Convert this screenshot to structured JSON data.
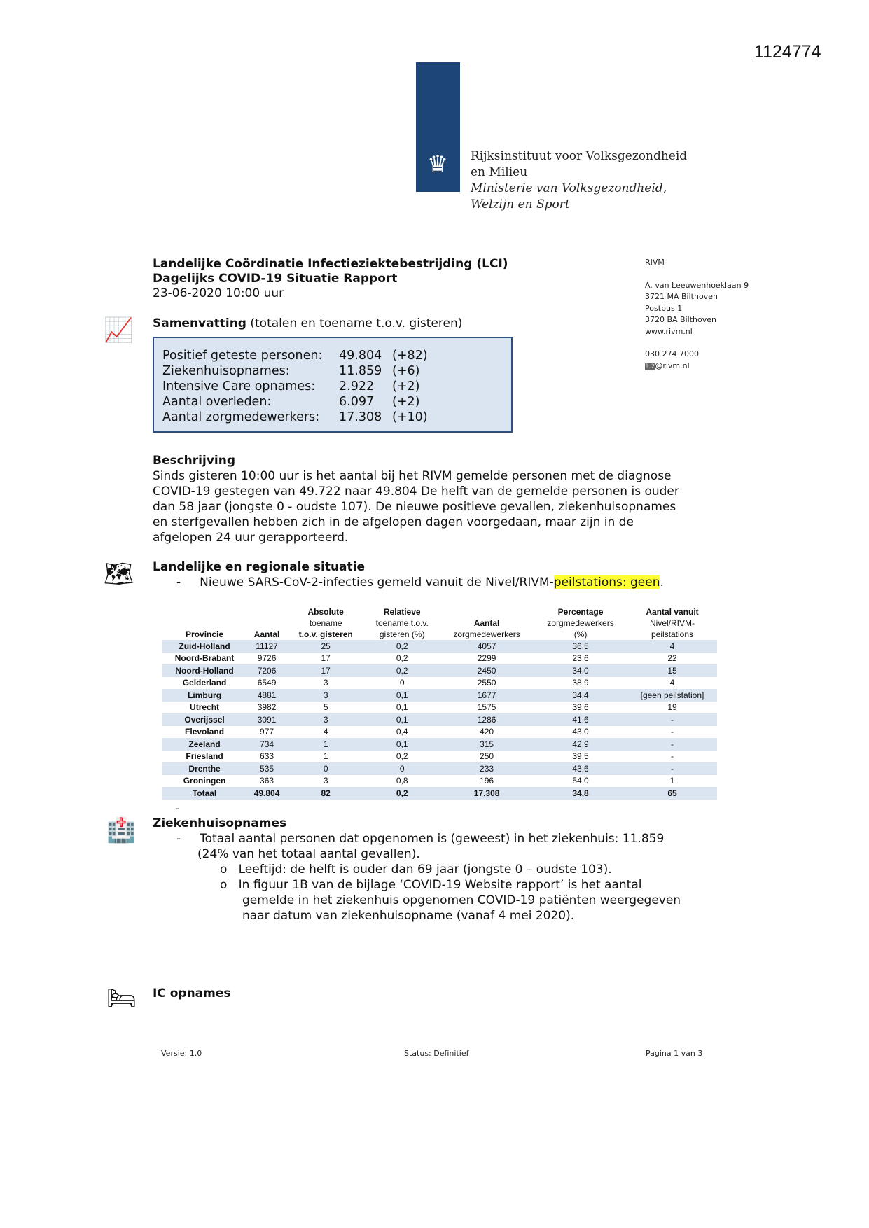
{
  "doc_id": "1124774",
  "logo": {
    "org": "Rijksinstituut voor Volksgezondheid",
    "org2": "en Milieu",
    "ministry": "Ministerie van Volksgezondheid,",
    "ministry2": "Welzijn en Sport",
    "icon": "royal-crest-icon",
    "color": "#1d4677"
  },
  "header": {
    "line1": "Landelijke Coördinatie Infectieziektebestrijding (LCI)",
    "line2": "Dagelijks COVID-19 Situatie Rapport",
    "date": "23-06-2020 10:00 uur"
  },
  "address": {
    "name": "RIVM",
    "street": "A. van Leeuwenhoeklaan 9",
    "city": "3721 MA Bilthoven",
    "postbus": "Postbus 1",
    "postcity": "3720 BA Bilthoven",
    "web": "www.rivm.nl",
    "phone": "030 274 7000",
    "email_redacted": "1.2",
    "email": "@rivm.nl"
  },
  "summary": {
    "title": "Samenvatting",
    "subtitle": "(totalen en toename t.o.v. gisteren)",
    "rows": [
      {
        "label": "Positief geteste personen:",
        "value": "49.804",
        "delta": "(+82)"
      },
      {
        "label": "Ziekenhuisopnames:",
        "value": "11.859",
        "delta": "(+6)"
      },
      {
        "label": "Intensive Care opnames:",
        "value": "2.922",
        "delta": "(+2)"
      },
      {
        "label": "Aantal overleden:",
        "value": "6.097",
        "delta": "(+2)"
      },
      {
        "label": "Aantal zorgmedewerkers:",
        "value": "17.308",
        "delta": "(+10)"
      }
    ]
  },
  "description": {
    "title": "Beschrijving",
    "lines": [
      "Sinds gisteren 10:00 uur is het aantal bij het RIVM gemelde personen met de diagnose",
      "COVID-19 gestegen van 49.722 naar 49.804 De helft van de gemelde personen is ouder",
      "dan 58 jaar (jongste 0 - oudste 107). De nieuwe positieve gevallen, ziekenhuisopnames",
      "en sterfgevallen hebben zich in de afgelopen dagen voorgedaan, maar zijn in de",
      "afgelopen 24 uur gerapporteerd."
    ]
  },
  "regional": {
    "title": "Landelijke en regionale situatie",
    "bullet": "Nieuwe SARS-CoV-2-infecties gemeld vanuit de Nivel/RIVM-",
    "bullet_highlight": "peilstations: geen",
    "bullet_end": "."
  },
  "table": {
    "headers": [
      [
        "",
        "Provincie"
      ],
      [
        "",
        "Aantal"
      ],
      [
        "Absolute",
        "toename",
        "t.o.v. gisteren"
      ],
      [
        "Relatieve",
        "toename t.o.v.",
        "gisteren (%)"
      ],
      [
        "",
        "Aantal",
        "zorgmedewerkers"
      ],
      [
        "Percentage",
        "zorgmedewerkers",
        "(%)"
      ],
      [
        "Aantal vanuit",
        "Nivel/RIVM-",
        "peilstations"
      ]
    ],
    "rows": [
      [
        "Zuid-Holland",
        "11127",
        "25",
        "0,2",
        "4057",
        "36,5",
        "4"
      ],
      [
        "Noord-Brabant",
        "9726",
        "17",
        "0,2",
        "2299",
        "23,6",
        "22"
      ],
      [
        "Noord-Holland",
        "7206",
        "17",
        "0,2",
        "2450",
        "34,0",
        "15"
      ],
      [
        "Gelderland",
        "6549",
        "3",
        "0",
        "2550",
        "38,9",
        "4"
      ],
      [
        "Limburg",
        "4881",
        "3",
        "0,1",
        "1677",
        "34,4",
        "[geen peilstation]"
      ],
      [
        "Utrecht",
        "3982",
        "5",
        "0,1",
        "1575",
        "39,6",
        "19"
      ],
      [
        "Overijssel",
        "3091",
        "3",
        "0,1",
        "1286",
        "41,6",
        "-"
      ],
      [
        "Flevoland",
        "977",
        "4",
        "0,4",
        "420",
        "43,0",
        "-"
      ],
      [
        "Zeeland",
        "734",
        "1",
        "0,1",
        "315",
        "42,9",
        "-"
      ],
      [
        "Friesland",
        "633",
        "1",
        "0,2",
        "250",
        "39,5",
        "-"
      ],
      [
        "Drenthe",
        "535",
        "0",
        "0",
        "233",
        "43,6",
        "-"
      ],
      [
        "Groningen",
        "363",
        "3",
        "0,8",
        "196",
        "54,0",
        "1"
      ]
    ],
    "total": [
      "Totaal",
      "49.804",
      "82",
      "0,2",
      "17.308",
      "34,8",
      "65"
    ]
  },
  "after_table_dash": "-",
  "hospital": {
    "title": "Ziekenhuisopnames",
    "bullet1": "Totaal aantal personen dat opgenomen is (geweest) in het ziekenhuis: 11.859",
    "bullet1b": "(24% van het totaal aantal gevallen).",
    "sub1": "Leeftijd: de helft is ouder dan 69 jaar (jongste 0 – oudste 103).",
    "sub2": [
      "In figuur 1B van de bijlage ‘COVID-19 Website rapport’ is het aantal",
      "gemelde in het ziekenhuis opgenomen COVID-19 patiënten weergegeven",
      "naar datum van ziekenhuisopname (vanaf 4 mei 2020)."
    ]
  },
  "ic": {
    "title": "IC opnames"
  },
  "footer": {
    "version": "Versie: 1.0",
    "status": "Status: Definitief",
    "page": "Pagina 1 van 3"
  }
}
